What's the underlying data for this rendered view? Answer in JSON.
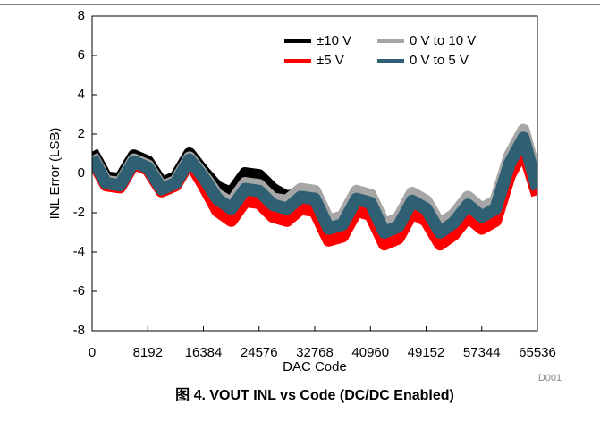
{
  "chart_data": {
    "type": "line",
    "title": "图 4. VOUT INL vs Code (DC/DC Enabled)",
    "note": "D001",
    "x_label": "DAC Code",
    "y_label": "INL Error (LSB)",
    "x": [
      0,
      2048,
      4096,
      6144,
      8192,
      10240,
      12288,
      14336,
      16384,
      18432,
      20480,
      22528,
      24576,
      26624,
      28672,
      30720,
      32768,
      34816,
      36864,
      38912,
      40960,
      43008,
      45056,
      47104,
      49152,
      51200,
      53248,
      55296,
      57344,
      59392,
      61440,
      63488,
      65536
    ],
    "series": [
      {
        "name": "±10 V",
        "color": "#000000",
        "values": [
          1.1,
          -0.2,
          -0.3,
          0.9,
          0.6,
          -0.5,
          -0.2,
          1.0,
          0.1,
          -0.7,
          -1.0,
          0.0,
          -0.1,
          -0.8,
          -1.2,
          -1.0,
          -1.1,
          -2.5,
          -2.3,
          -1.0,
          -1.2,
          -2.7,
          -2.4,
          -1.1,
          -1.5,
          -2.7,
          -2.2,
          -1.3,
          -1.9,
          -1.5,
          0.8,
          2.1,
          -0.5
        ]
      },
      {
        "name": "0 V to 10 V",
        "color": "#a6a6a6",
        "values": [
          0.9,
          -0.4,
          -0.5,
          0.7,
          0.4,
          -0.7,
          -0.4,
          0.8,
          -0.1,
          -1.1,
          -1.5,
          -0.5,
          -0.6,
          -1.3,
          -1.4,
          -0.8,
          -0.9,
          -2.4,
          -2.2,
          -0.9,
          -1.1,
          -2.6,
          -2.3,
          -1.0,
          -1.4,
          -2.6,
          -2.1,
          -1.2,
          -1.8,
          -1.4,
          0.9,
          2.2,
          -0.4
        ]
      },
      {
        "name": "±5 V",
        "color": "#ff0000",
        "values": [
          0.7,
          -0.6,
          -0.7,
          0.5,
          0.2,
          -0.9,
          -0.6,
          0.6,
          -0.6,
          -1.9,
          -2.4,
          -1.4,
          -1.5,
          -2.2,
          -2.4,
          -1.8,
          -1.9,
          -3.4,
          -3.2,
          -1.9,
          -2.1,
          -3.6,
          -3.3,
          -2.0,
          -2.4,
          -3.6,
          -3.1,
          -2.2,
          -2.8,
          -2.4,
          -0.1,
          1.2,
          -1.1
        ]
      },
      {
        "name": "0 V to 5 V",
        "color": "#2e5f73",
        "values": [
          0.8,
          -0.5,
          -0.6,
          0.6,
          0.3,
          -0.8,
          -0.5,
          0.7,
          -0.2,
          -1.3,
          -1.8,
          -0.8,
          -0.9,
          -1.6,
          -1.8,
          -1.2,
          -1.3,
          -2.8,
          -2.6,
          -1.3,
          -1.5,
          -3.0,
          -2.7,
          -1.4,
          -1.8,
          -3.0,
          -2.5,
          -1.6,
          -2.2,
          -1.8,
          0.5,
          1.8,
          -0.8
        ]
      }
    ],
    "xlim": [
      0,
      65536
    ],
    "xticks": [
      0,
      8192,
      16384,
      24576,
      32768,
      40960,
      49152,
      57344,
      65536
    ],
    "ylim": [
      -8,
      8
    ],
    "yticks": [
      -8,
      -6,
      -4,
      -2,
      0,
      2,
      4,
      6,
      8
    ],
    "legend": "upper right"
  }
}
